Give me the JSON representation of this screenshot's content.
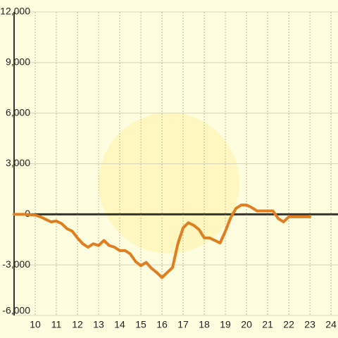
{
  "chart_data": {
    "type": "line",
    "x": [
      9,
      9.5,
      10,
      10.25,
      10.5,
      10.75,
      11,
      11.25,
      11.5,
      11.75,
      12,
      12.25,
      12.5,
      12.75,
      13,
      13.25,
      13.5,
      13.75,
      14,
      14.25,
      14.5,
      14.75,
      15,
      15.25,
      15.5,
      15.75,
      16,
      16.25,
      16.5,
      16.75,
      17,
      17.25,
      17.5,
      17.75,
      18,
      18.25,
      18.5,
      18.75,
      19,
      19.25,
      19.5,
      19.75,
      20,
      20.25,
      20.5,
      20.75,
      21,
      21.25,
      21.5,
      21.75,
      22,
      22.25,
      22.5,
      23
    ],
    "series": [
      {
        "color": "#e07f22",
        "values": [
          0,
          0,
          -50,
          -150,
          -300,
          -450,
          -400,
          -550,
          -850,
          -1000,
          -1400,
          -1750,
          -1950,
          -1750,
          -1850,
          -1550,
          -1850,
          -1950,
          -2150,
          -2150,
          -2350,
          -2800,
          -3050,
          -2850,
          -3200,
          -3450,
          -3750,
          -3450,
          -3150,
          -1750,
          -800,
          -500,
          -650,
          -900,
          -1400,
          -1400,
          -1550,
          -1700,
          -1000,
          -200,
          350,
          550,
          550,
          400,
          200,
          200,
          200,
          200,
          -250,
          -450,
          -150,
          -150,
          -150,
          -150
        ]
      }
    ],
    "xlim": [
      9,
      24.33
    ],
    "xticks": [
      10,
      11,
      12,
      13,
      14,
      15,
      16,
      17,
      18,
      19,
      20,
      21,
      22,
      23,
      24
    ],
    "ylim": [
      -6000,
      12000
    ],
    "yticks": [
      {
        "value": -6000,
        "label": "-6,000"
      },
      {
        "value": -3000,
        "label": "-3,000"
      },
      0,
      {
        "value": 3000,
        "label": "3,000"
      },
      {
        "value": 6000,
        "label": "6,000"
      },
      {
        "value": 9000,
        "label": "9,000"
      },
      {
        "value": 12000,
        "label": "12,000"
      }
    ],
    "grid": true
  }
}
